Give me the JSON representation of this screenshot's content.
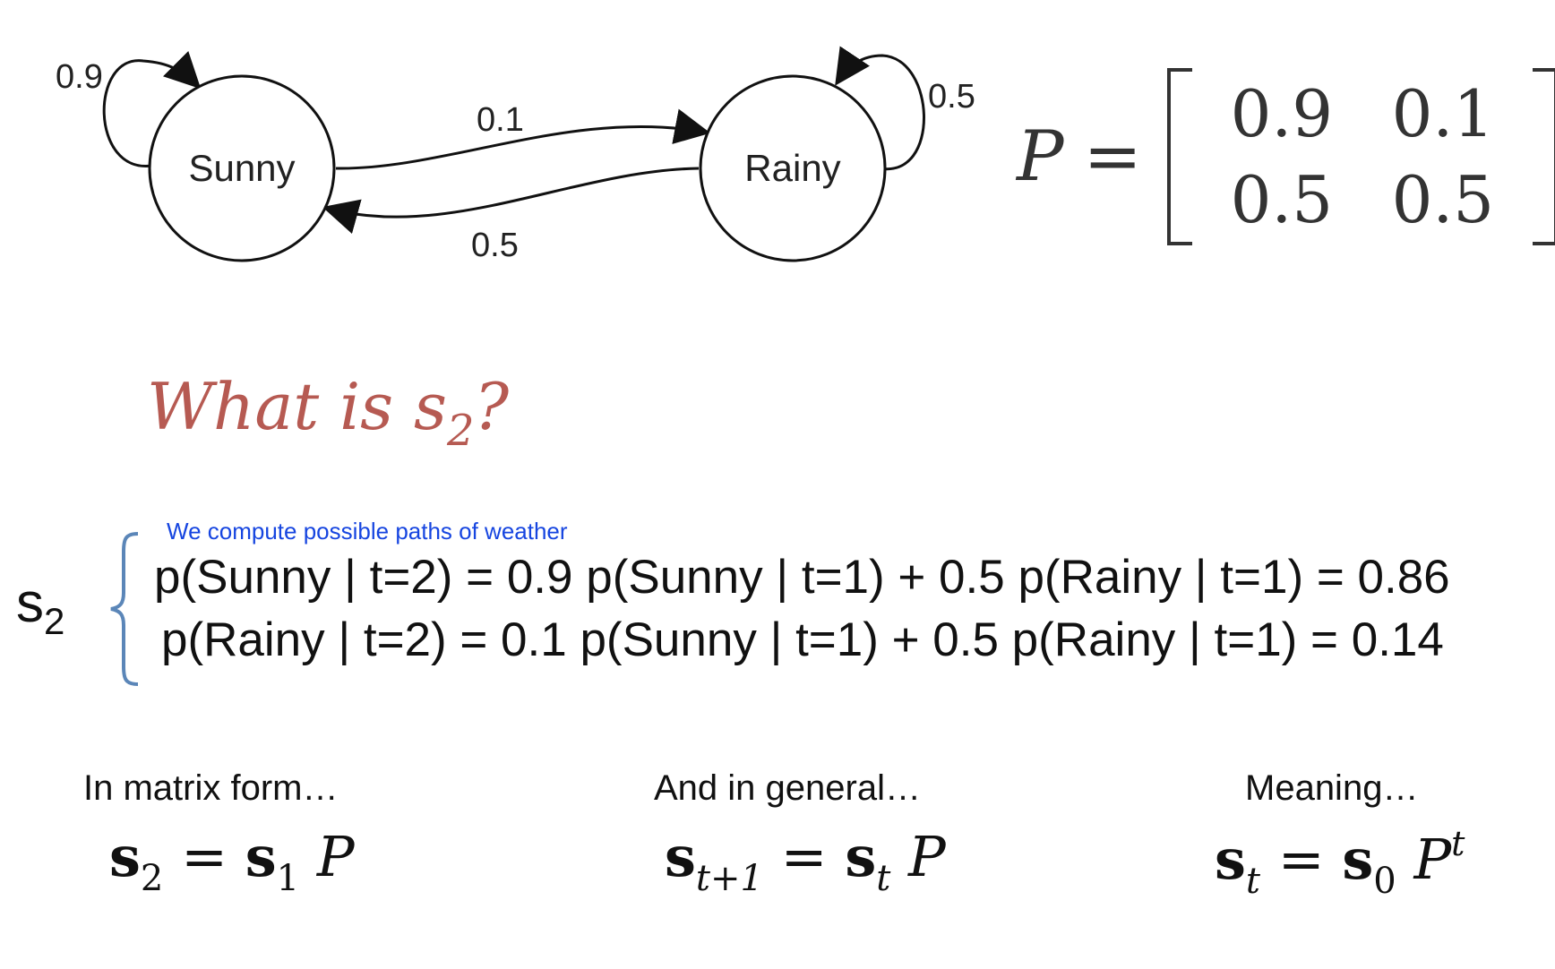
{
  "diagram": {
    "nodes": [
      {
        "id": "sunny",
        "label": "Sunny"
      },
      {
        "id": "rainy",
        "label": "Rainy"
      }
    ],
    "edges": [
      {
        "from": "sunny",
        "to": "sunny",
        "label": "0.9"
      },
      {
        "from": "sunny",
        "to": "rainy",
        "label": "0.1"
      },
      {
        "from": "rainy",
        "to": "sunny",
        "label": "0.5"
      },
      {
        "from": "rainy",
        "to": "rainy",
        "label": "0.5"
      }
    ]
  },
  "matrix": {
    "symbol": "P",
    "equals": "=",
    "rows": [
      [
        "0.9",
        "0.1"
      ],
      [
        "0.5",
        "0.5"
      ]
    ]
  },
  "question": {
    "prefix": "What is s",
    "subscript": "2",
    "suffix": "?"
  },
  "s2_label": {
    "base": "s",
    "subscript": "2"
  },
  "annotation": "We compute possible paths of weather",
  "equations": [
    "p(Sunny | t=2) = 0.9 p(Sunny | t=1) + 0.5 p(Rainy | t=1) = 0.86",
    "p(Rainy | t=2) = 0.1 p(Sunny | t=1) + 0.5 p(Rainy | t=1) = 0.14"
  ],
  "captions": [
    "In matrix form…",
    "And in general…",
    "Meaning…"
  ],
  "formulas": {
    "f1": {
      "lhs": "s",
      "lhs_sub": "2",
      "eq": "=",
      "rhs": "s",
      "rhs_sub": "1",
      "mat": "P"
    },
    "f2": {
      "lhs": "s",
      "lhs_sub": "t+1",
      "eq": "=",
      "rhs": "s",
      "rhs_sub": "t",
      "mat": "P"
    },
    "f3": {
      "lhs": "s",
      "lhs_sub": "t",
      "eq": "=",
      "rhs": "s",
      "rhs_sub": "0",
      "mat": "P",
      "mat_sup": "t"
    }
  },
  "colors": {
    "question": "#b65a52",
    "annotation": "#1645e0",
    "brace": "#5b86b8",
    "line": "#111111"
  }
}
